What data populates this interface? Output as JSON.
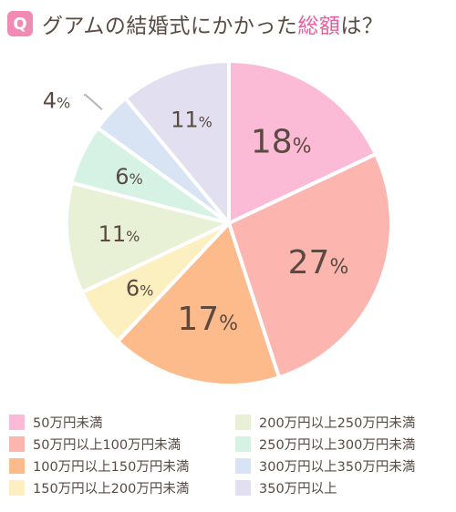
{
  "header": {
    "badge": "Q",
    "title_before": "グアムの結婚式にかかった",
    "title_accent": "総額",
    "title_after": "は？"
  },
  "chart_data": {
    "type": "pie",
    "title": "グアムの結婚式にかかった総額は？",
    "categories": [
      "50万円未満",
      "50万円以上100万円未満",
      "100万円以上150万円未満",
      "150万円以上200万円未満",
      "200万円以上250万円未満",
      "250万円以上300万円未満",
      "300万円以上350万円未満",
      "350万円以上"
    ],
    "values": [
      18,
      27,
      17,
      6,
      11,
      6,
      4,
      11
    ],
    "labels": [
      "18%",
      "27%",
      "17%",
      "6%",
      "11%",
      "6%",
      "4%",
      "11%"
    ],
    "colors": [
      "#fbbad6",
      "#fdb5b0",
      "#fdbb8c",
      "#fdf0c0",
      "#e8f0d5",
      "#d6f2e4",
      "#d8e4f4",
      "#e2dff0"
    ],
    "start": "12 o'clock",
    "direction": "clockwise",
    "legend_position": "bottom"
  }
}
